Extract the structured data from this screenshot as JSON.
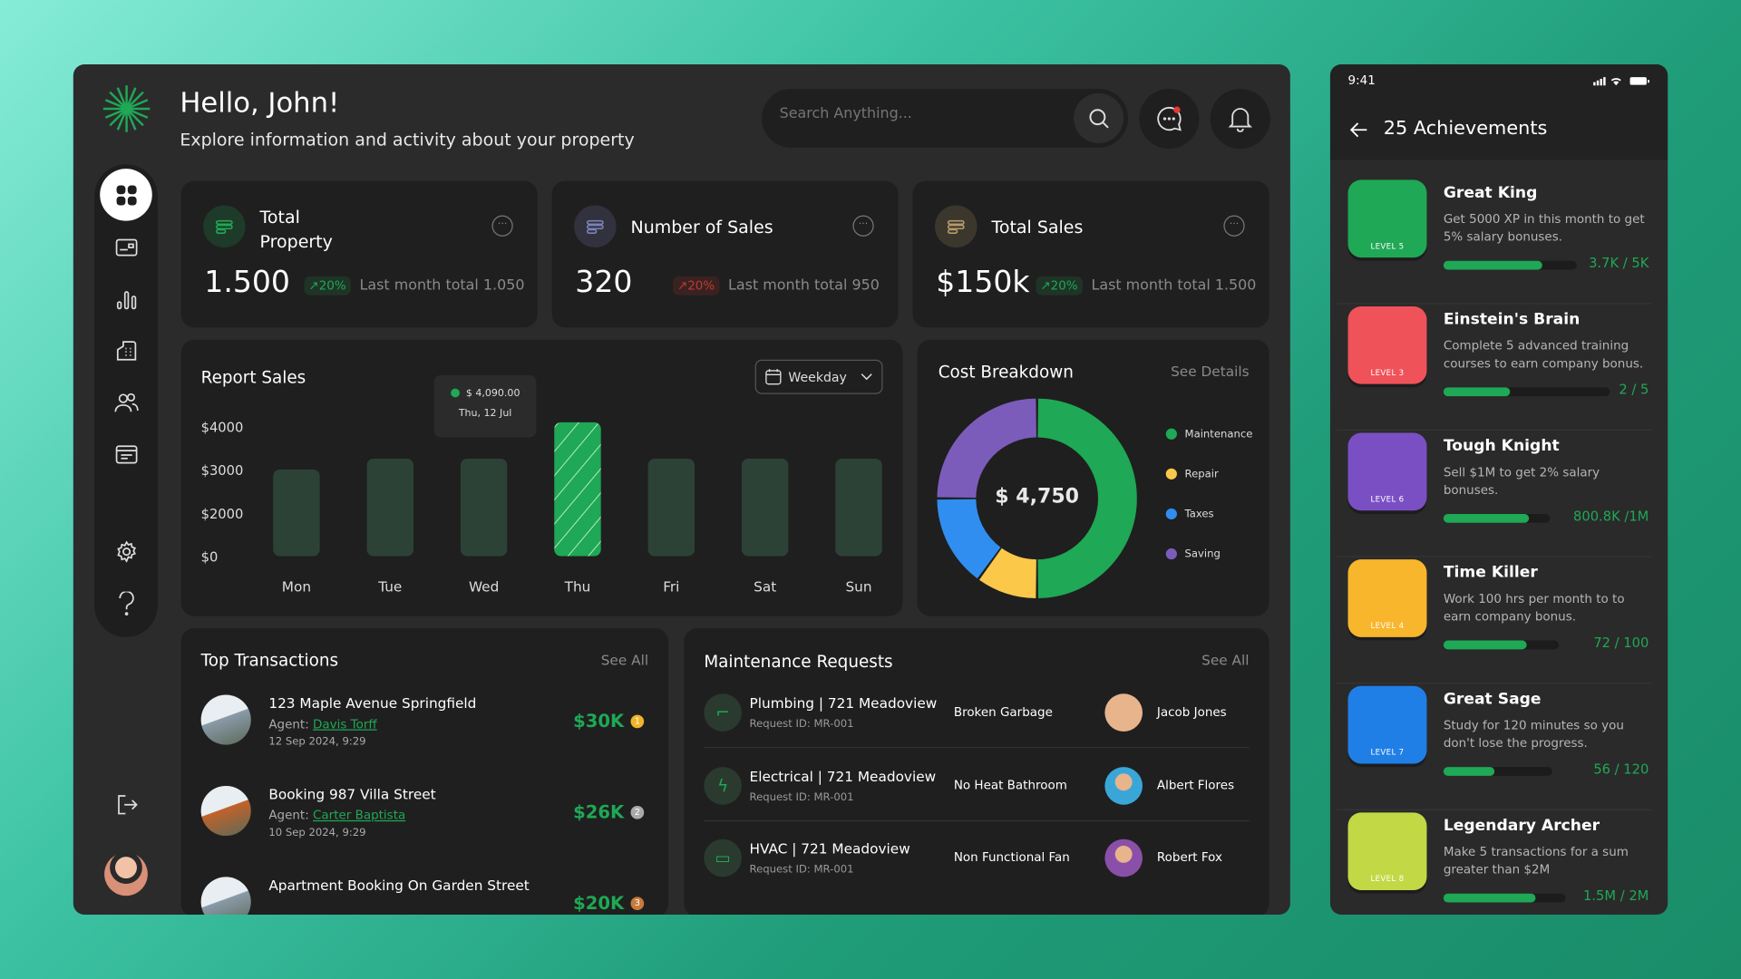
{
  "header": {
    "greeting": "Hello, John!",
    "subtitle": "Explore information and activity about your property",
    "search_placeholder": "Search Anything..."
  },
  "sidebar": {
    "items": [
      {
        "icon": "grid-icon",
        "active": true
      },
      {
        "icon": "card-icon"
      },
      {
        "icon": "chart-icon"
      },
      {
        "icon": "building-icon"
      },
      {
        "icon": "users-icon"
      },
      {
        "icon": "calendar-icon"
      },
      {
        "icon": "gear-icon"
      },
      {
        "icon": "help-icon"
      }
    ],
    "logout_icon": "logout-icon"
  },
  "stats": [
    {
      "title_line1": "Total",
      "title_line2": "Property",
      "value": "1.500",
      "change": "20%",
      "trend": "up",
      "note": "Last month total 1.050",
      "icon": "building-icon",
      "icon_color": "#1fa855"
    },
    {
      "title_line1": "Number of Sales",
      "title_line2": "",
      "value": "320",
      "change": "20%",
      "trend": "down",
      "note": "Last month total 950",
      "icon": "list-icon",
      "icon_color": "#7b82b8"
    },
    {
      "title_line1": "Total Sales",
      "title_line2": "",
      "value": "$150k",
      "change": "20%",
      "trend": "up",
      "note": "Last month total 1.500",
      "icon": "money-bag-icon",
      "icon_color": "#b59a6a"
    }
  ],
  "report": {
    "title": "Report Sales",
    "filter": "Weekday",
    "tooltip": {
      "value": "$ 4,090.00",
      "date": "Thu, 12 Jul"
    }
  },
  "chart_data": [
    {
      "type": "bar",
      "title": "Report Sales",
      "categories": [
        "Mon",
        "Tue",
        "Wed",
        "Thu",
        "Fri",
        "Sat",
        "Sun"
      ],
      "values": [
        3000,
        3250,
        3250,
        4090,
        3250,
        3250,
        3250
      ],
      "highlight": "Thu",
      "yticks": [
        "$0",
        "$2000",
        "$3000",
        "$4000"
      ],
      "ytick_values": [
        0,
        2000,
        3000,
        4000
      ],
      "colors": {
        "bar": "#2d4236",
        "highlight": "#1fa855"
      }
    },
    {
      "type": "pie",
      "title": "Cost Breakdown",
      "center_label": "$ 4,750",
      "categories": [
        "Maintenance",
        "Repair",
        "Taxes",
        "Saving"
      ],
      "values": [
        50,
        10,
        15,
        25
      ],
      "colors": [
        "#1fa855",
        "#fbc84a",
        "#2f8ef0",
        "#7c5cbb"
      ],
      "legend": "right"
    }
  ],
  "cost": {
    "title": "Cost Breakdown",
    "link": "See Details"
  },
  "transactions": {
    "title": "Top Transactions",
    "link": "See All",
    "agent_label": "Agent:",
    "items": [
      {
        "name": "123 Maple Avenue Springfield",
        "agent": "Davis Torff",
        "date": "12 Sep 2024, 9:29",
        "amount": "$30K",
        "rank": "1"
      },
      {
        "name": "Booking 987 Villa Street",
        "agent": "Carter Baptista",
        "date": "10 Sep 2024, 9:29",
        "amount": "$26K",
        "rank": "2"
      },
      {
        "name": "Apartment Booking On Garden Street",
        "agent": "",
        "date": "",
        "amount": "$20K",
        "rank": "3"
      }
    ]
  },
  "maintenance": {
    "title": "Maintenance Requests",
    "link": "See All",
    "items": [
      {
        "category": "Plumbing | 721 Meadoview",
        "request_id": "Request ID: MR-001",
        "issue": "Broken Garbage",
        "person": "Jacob Jones",
        "icon": "faucet-icon",
        "avatar_color": "#e8b48c"
      },
      {
        "category": "Electrical | 721 Meadoview",
        "request_id": "Request ID: MR-001",
        "issue": "No Heat Bathroom",
        "person": "Albert Flores",
        "icon": "lightning-icon",
        "avatar_color": "#3aa6d8"
      },
      {
        "category": "HVAC | 721 Meadoview",
        "request_id": "Request ID: MR-001",
        "issue": "Non Functional Fan",
        "person": "Robert Fox",
        "icon": "air-conditioner-icon",
        "avatar_color": "#8a4fa8"
      }
    ]
  },
  "phone": {
    "time": "9:41",
    "title": "25 Achievements",
    "achievements": [
      {
        "title": "Great King",
        "desc": "Get 5000 XP in this month to get 5% salary bonuses.",
        "level": "LEVEL 5",
        "progress": "3.7K / 5K",
        "fraction": 0.74,
        "color": "#1fa855",
        "icon": "crown-icon"
      },
      {
        "title": "Einstein's Brain",
        "desc": "Complete 5 advanced training courses to earn company bonus.",
        "level": "LEVEL 3",
        "progress": "2 / 5",
        "fraction": 0.4,
        "color": "#f0525a",
        "icon": "brain-icon"
      },
      {
        "title": "Tough Knight",
        "desc": "Sell $1M to get 2% salary bonuses.",
        "level": "LEVEL 6",
        "progress": "800.8K /1M",
        "fraction": 0.8,
        "color": "#7b4fc4",
        "icon": "swords-icon"
      },
      {
        "title": "Time Killer",
        "desc": "Work 100 hrs per month to to earn company bonus.",
        "level": "LEVEL 4",
        "progress": "72 / 100",
        "fraction": 0.72,
        "color": "#f8b62c",
        "icon": "hourglass-icon"
      },
      {
        "title": "Great Sage",
        "desc": "Study for 120 minutes so you don't lose the progress.",
        "level": "LEVEL 7",
        "progress": "56 / 120",
        "fraction": 0.47,
        "color": "#1f7fe6",
        "icon": "book-icon"
      },
      {
        "title": "Legendary Archer",
        "desc": "Make 5 transactions for a sum greater than $2M",
        "level": "LEVEL 8",
        "progress": "1.5M / 2M",
        "fraction": 0.75,
        "color": "#c2d845",
        "icon": "bow-icon"
      }
    ]
  }
}
